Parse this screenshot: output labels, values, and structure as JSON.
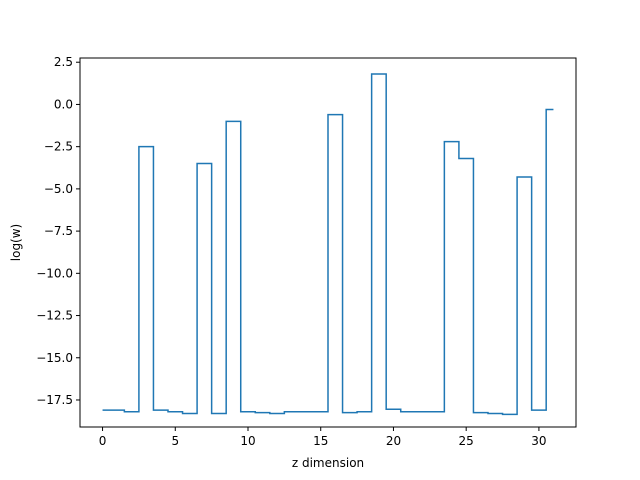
{
  "chart_data": {
    "type": "line",
    "drawstyle": "steps-mid",
    "title": "",
    "xlabel": "z dimension",
    "ylabel": "log(w)",
    "xlim": [
      -1.55,
      32.55
    ],
    "ylim": [
      -19.1,
      2.75
    ],
    "xticks": [
      0,
      5,
      10,
      15,
      20,
      25,
      30
    ],
    "yticks": [
      2.5,
      0.0,
      -2.5,
      -5.0,
      -7.5,
      -10.0,
      -12.5,
      -15.0,
      -17.5
    ],
    "xtick_labels": [
      "0",
      "5",
      "10",
      "15",
      "20",
      "25",
      "30"
    ],
    "ytick_labels": [
      "2.5",
      "0.0",
      "−2.5",
      "−5.0",
      "−7.5",
      "−10.0",
      "−12.5",
      "−15.0",
      "−17.5"
    ],
    "grid": false,
    "line_color": "#1f77b4",
    "series": [
      {
        "x": [
          0,
          1,
          2,
          3,
          4,
          5,
          6,
          7,
          8,
          9,
          10,
          11,
          12,
          13,
          14,
          15,
          16,
          17,
          18,
          19,
          20,
          21,
          22,
          23,
          24,
          25,
          26,
          27,
          28,
          29,
          30,
          31
        ],
        "values": [
          -18.1,
          -18.1,
          -18.2,
          -2.5,
          -18.1,
          -18.2,
          -18.3,
          -3.5,
          -18.3,
          -1.0,
          -18.2,
          -18.25,
          -18.3,
          -18.2,
          -18.2,
          -18.2,
          -0.6,
          -18.25,
          -18.2,
          1.8,
          -18.05,
          -18.2,
          -18.2,
          -18.2,
          -2.2,
          -3.2,
          -18.25,
          -18.3,
          -18.35,
          -4.3,
          -18.1,
          -0.3
        ]
      }
    ]
  }
}
